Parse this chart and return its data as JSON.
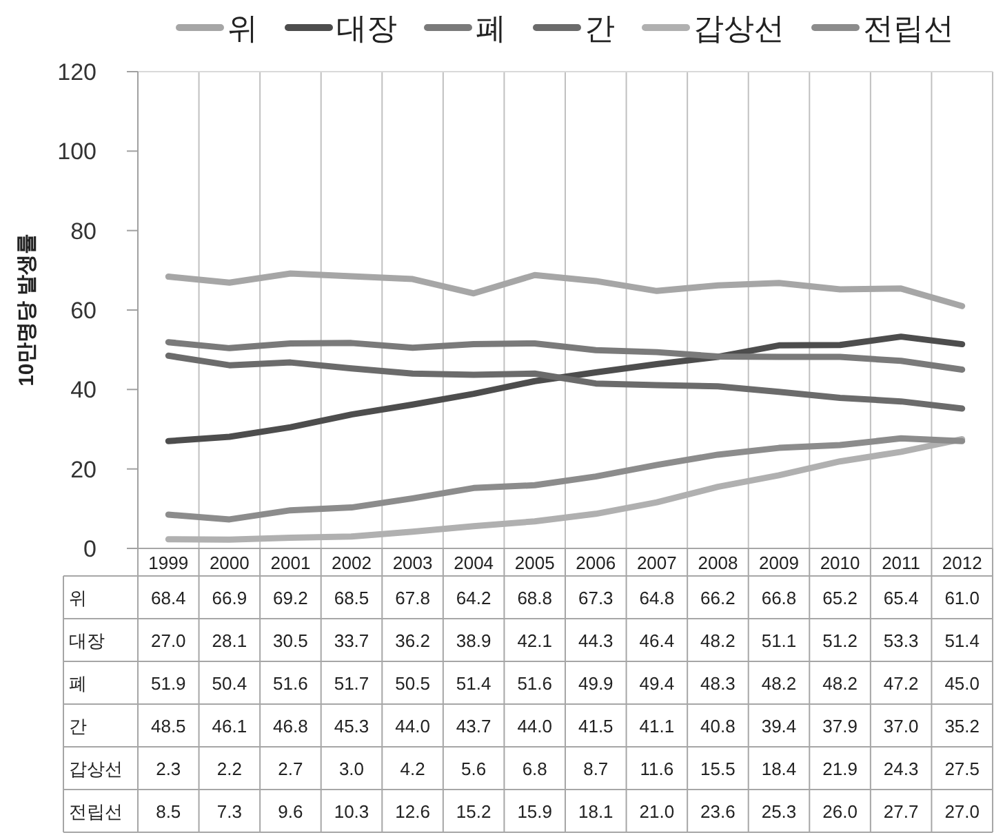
{
  "chart_data": {
    "type": "line",
    "ylabel": "10만명당 발생률",
    "categories": [
      "1999",
      "2000",
      "2001",
      "2002",
      "2003",
      "2004",
      "2005",
      "2006",
      "2007",
      "2008",
      "2009",
      "2010",
      "2011",
      "2012"
    ],
    "ylim": [
      0,
      120
    ],
    "yticks": [
      0,
      20,
      40,
      60,
      80,
      100,
      120
    ],
    "grid": "x",
    "legend": "top",
    "series": [
      {
        "name": "위",
        "color": "#a6a6a6",
        "values": [
          68.4,
          66.9,
          69.2,
          68.5,
          67.8,
          64.2,
          68.8,
          67.3,
          64.8,
          66.2,
          66.8,
          65.2,
          65.4,
          61.0
        ],
        "value_labels": [
          "68.4",
          "66.9",
          "69.2",
          "68.5",
          "67.8",
          "64.2",
          "68.8",
          "67.3",
          "64.8",
          "66.2",
          "66.8",
          "65.2",
          "65.4",
          "61.0"
        ]
      },
      {
        "name": "대장",
        "color": "#4d4d4d",
        "values": [
          27.0,
          28.1,
          30.5,
          33.7,
          36.2,
          38.9,
          42.1,
          44.3,
          46.4,
          48.2,
          51.1,
          51.2,
          53.3,
          51.4
        ],
        "value_labels": [
          "27.0",
          "28.1",
          "30.5",
          "33.7",
          "36.2",
          "38.9",
          "42.1",
          "44.3",
          "46.4",
          "48.2",
          "51.1",
          "51.2",
          "53.3",
          "51.4"
        ]
      },
      {
        "name": "폐",
        "color": "#7a7a7a",
        "values": [
          51.9,
          50.4,
          51.6,
          51.7,
          50.5,
          51.4,
          51.6,
          49.9,
          49.4,
          48.3,
          48.2,
          48.2,
          47.2,
          45.0
        ],
        "value_labels": [
          "51.9",
          "50.4",
          "51.6",
          "51.7",
          "50.5",
          "51.4",
          "51.6",
          "49.9",
          "49.4",
          "48.3",
          "48.2",
          "48.2",
          "47.2",
          "45.0"
        ]
      },
      {
        "name": "간",
        "color": "#6b6b6b",
        "values": [
          48.5,
          46.1,
          46.8,
          45.3,
          44.0,
          43.7,
          44.0,
          41.5,
          41.1,
          40.8,
          39.4,
          37.9,
          37.0,
          35.2
        ],
        "value_labels": [
          "48.5",
          "46.1",
          "46.8",
          "45.3",
          "44.0",
          "43.7",
          "44.0",
          "41.5",
          "41.1",
          "40.8",
          "39.4",
          "37.9",
          "37.0",
          "35.2"
        ]
      },
      {
        "name": "갑상선",
        "color": "#b0b0b0",
        "values": [
          2.3,
          2.2,
          2.7,
          3.0,
          4.2,
          5.6,
          6.8,
          8.7,
          11.6,
          15.5,
          18.4,
          21.9,
          24.3,
          27.5
        ],
        "value_labels": [
          "2.3",
          "2.2",
          "2.7",
          "3.0",
          "4.2",
          "5.6",
          "6.8",
          "8.7",
          "11.6",
          "15.5",
          "18.4",
          "21.9",
          "24.3",
          "27.5"
        ]
      },
      {
        "name": "전립선",
        "color": "#8c8c8c",
        "values": [
          8.5,
          7.3,
          9.6,
          10.3,
          12.6,
          15.2,
          15.9,
          18.1,
          21.0,
          23.6,
          25.3,
          26.0,
          27.7,
          27.0
        ],
        "value_labels": [
          "8.5",
          "7.3",
          "9.6",
          "10.3",
          "12.6",
          "15.2",
          "15.9",
          "18.1",
          "21.0",
          "23.6",
          "25.3",
          "26.0",
          "27.7",
          "27.0"
        ]
      }
    ]
  }
}
